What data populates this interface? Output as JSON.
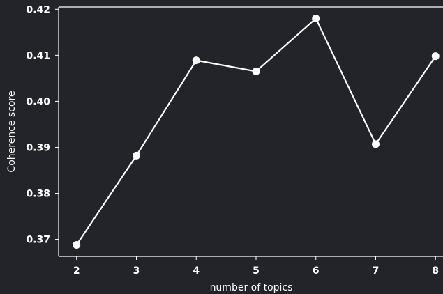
{
  "chart_data": {
    "type": "line",
    "title": "",
    "xlabel": "number of topics",
    "ylabel": "Coherence score",
    "x": [
      2,
      3,
      4,
      5,
      6,
      7,
      8
    ],
    "series": [
      {
        "values": [
          0.3688,
          0.3882,
          0.4089,
          0.4065,
          0.418,
          0.3907,
          0.4098
        ]
      }
    ],
    "xlim": [
      1.7,
      8.3
    ],
    "ylim": [
      0.3663,
      0.4205
    ],
    "xticks": [
      "2",
      "3",
      "4",
      "5",
      "6",
      "7",
      "8"
    ],
    "yticks": [
      "0.37",
      "0.38",
      "0.39",
      "0.40",
      "0.41",
      "0.42"
    ],
    "grid": false,
    "legend": "none",
    "colors": {
      "background": "#23242a",
      "line": "#ffffff",
      "axis": "#ffffff",
      "text": "#ffffff"
    }
  }
}
